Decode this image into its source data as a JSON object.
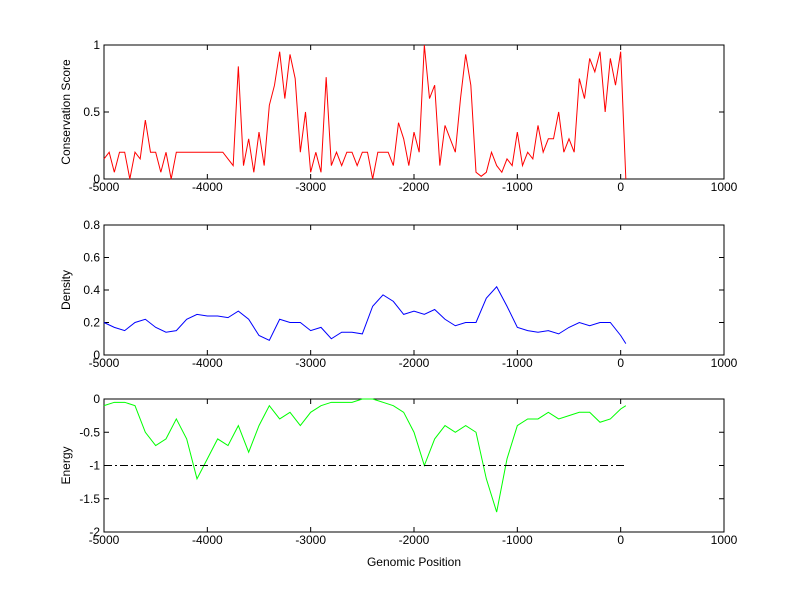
{
  "chart_data": [
    {
      "type": "line",
      "ylabel": "Conservation Score",
      "xlim": [
        -5000,
        1000
      ],
      "xticks": [
        -5000,
        -4000,
        -3000,
        -2000,
        -1000,
        0,
        1000
      ],
      "ylim": [
        0,
        1
      ],
      "yticks": [
        0,
        0.5,
        1
      ],
      "series": [
        {
          "color": "#ff0000",
          "x": [
            -5000,
            -4950,
            -4900,
            -4850,
            -4800,
            -4750,
            -4700,
            -4650,
            -4600,
            -4550,
            -4500,
            -4450,
            -4400,
            -4350,
            -4300,
            -4250,
            -4200,
            -4150,
            -4100,
            -4050,
            -4000,
            -3950,
            -3900,
            -3850,
            -3800,
            -3750,
            -3700,
            -3650,
            -3600,
            -3550,
            -3500,
            -3450,
            -3400,
            -3350,
            -3300,
            -3250,
            -3200,
            -3150,
            -3100,
            -3050,
            -3000,
            -2950,
            -2900,
            -2850,
            -2800,
            -2750,
            -2700,
            -2650,
            -2600,
            -2550,
            -2500,
            -2450,
            -2400,
            -2350,
            -2300,
            -2250,
            -2200,
            -2150,
            -2100,
            -2050,
            -2000,
            -1950,
            -1900,
            -1850,
            -1800,
            -1750,
            -1700,
            -1650,
            -1600,
            -1550,
            -1500,
            -1450,
            -1400,
            -1350,
            -1300,
            -1250,
            -1200,
            -1150,
            -1100,
            -1050,
            -1000,
            -950,
            -900,
            -850,
            -800,
            -750,
            -700,
            -650,
            -600,
            -550,
            -500,
            -450,
            -400,
            -350,
            -300,
            -250,
            -200,
            -150,
            -100,
            -50,
            0,
            50
          ],
          "values": [
            0.15,
            0.2,
            0.05,
            0.2,
            0.2,
            0,
            0.2,
            0.15,
            0.44,
            0.2,
            0.2,
            0.05,
            0.2,
            0,
            0.2,
            0.2,
            0.2,
            0.2,
            0.2,
            0.2,
            0.2,
            0.2,
            0.2,
            0.2,
            0.15,
            0.1,
            0.84,
            0.1,
            0.3,
            0.05,
            0.35,
            0.1,
            0.55,
            0.7,
            0.95,
            0.6,
            0.93,
            0.75,
            0.2,
            0.5,
            0.05,
            0.2,
            0.05,
            0.76,
            0.1,
            0.2,
            0.1,
            0.2,
            0.2,
            0.1,
            0.2,
            0.2,
            0,
            0.2,
            0.2,
            0.2,
            0.1,
            0.42,
            0.3,
            0.1,
            0.35,
            0.2,
            1,
            0.6,
            0.7,
            0.1,
            0.4,
            0.3,
            0.2,
            0.6,
            0.93,
            0.7,
            0.05,
            0.02,
            0.05,
            0.2,
            0.1,
            0.05,
            0.15,
            0.1,
            0.35,
            0.1,
            0.2,
            0.15,
            0.4,
            0.2,
            0.3,
            0.3,
            0.5,
            0.2,
            0.3,
            0.2,
            0.75,
            0.6,
            0.9,
            0.8,
            0.95,
            0.5,
            0.9,
            0.7,
            0.95,
            0
          ]
        }
      ]
    },
    {
      "type": "line",
      "ylabel": "Density",
      "xlim": [
        -5000,
        1000
      ],
      "xticks": [
        -5000,
        -4000,
        -3000,
        -2000,
        -1000,
        0,
        1000
      ],
      "ylim": [
        0,
        0.8
      ],
      "yticks": [
        0,
        0.2,
        0.4,
        0.6,
        0.8
      ],
      "series": [
        {
          "color": "#0000ff",
          "x": [
            -5000,
            -4900,
            -4800,
            -4700,
            -4600,
            -4500,
            -4400,
            -4300,
            -4200,
            -4100,
            -4000,
            -3900,
            -3800,
            -3700,
            -3600,
            -3500,
            -3400,
            -3300,
            -3200,
            -3100,
            -3000,
            -2900,
            -2800,
            -2700,
            -2600,
            -2500,
            -2400,
            -2300,
            -2200,
            -2100,
            -2000,
            -1900,
            -1800,
            -1700,
            -1600,
            -1500,
            -1400,
            -1300,
            -1200,
            -1100,
            -1000,
            -900,
            -800,
            -700,
            -600,
            -500,
            -400,
            -300,
            -200,
            -100,
            0,
            50
          ],
          "values": [
            0.2,
            0.17,
            0.15,
            0.2,
            0.22,
            0.17,
            0.14,
            0.15,
            0.22,
            0.25,
            0.24,
            0.24,
            0.23,
            0.27,
            0.22,
            0.12,
            0.09,
            0.22,
            0.2,
            0.2,
            0.15,
            0.17,
            0.1,
            0.14,
            0.14,
            0.13,
            0.3,
            0.37,
            0.33,
            0.25,
            0.27,
            0.25,
            0.28,
            0.22,
            0.18,
            0.2,
            0.2,
            0.35,
            0.42,
            0.3,
            0.17,
            0.15,
            0.14,
            0.15,
            0.13,
            0.17,
            0.2,
            0.18,
            0.2,
            0.2,
            0.12,
            0.07
          ]
        }
      ]
    },
    {
      "type": "line",
      "ylabel": "Energy",
      "xlabel": "Genomic Position",
      "xlim": [
        -5000,
        1000
      ],
      "xticks": [
        -5000,
        -4000,
        -3000,
        -2000,
        -1000,
        0,
        1000
      ],
      "ylim": [
        -2,
        0
      ],
      "yticks": [
        -2,
        -1.5,
        -1,
        -0.5,
        0
      ],
      "series": [
        {
          "color": "#00ff00",
          "x": [
            -5000,
            -4900,
            -4800,
            -4700,
            -4600,
            -4500,
            -4400,
            -4300,
            -4200,
            -4100,
            -4000,
            -3900,
            -3800,
            -3700,
            -3600,
            -3500,
            -3400,
            -3300,
            -3200,
            -3100,
            -3000,
            -2900,
            -2800,
            -2700,
            -2600,
            -2500,
            -2400,
            -2300,
            -2200,
            -2100,
            -2000,
            -1900,
            -1800,
            -1700,
            -1600,
            -1500,
            -1400,
            -1300,
            -1200,
            -1100,
            -1000,
            -900,
            -800,
            -700,
            -600,
            -500,
            -400,
            -300,
            -200,
            -100,
            0,
            50
          ],
          "values": [
            -0.1,
            -0.05,
            -0.05,
            -0.1,
            -0.5,
            -0.7,
            -0.6,
            -0.3,
            -0.6,
            -1.2,
            -0.9,
            -0.6,
            -0.7,
            -0.4,
            -0.8,
            -0.4,
            -0.1,
            -0.3,
            -0.2,
            -0.4,
            -0.2,
            -0.1,
            -0.05,
            -0.05,
            -0.05,
            0,
            0,
            -0.05,
            -0.1,
            -0.2,
            -0.5,
            -1,
            -0.6,
            -0.4,
            -0.5,
            -0.4,
            -0.5,
            -1.2,
            -1.7,
            -0.9,
            -0.4,
            -0.3,
            -0.3,
            -0.2,
            -0.3,
            -0.25,
            -0.2,
            -0.2,
            -0.35,
            -0.3,
            -0.15,
            -0.1
          ]
        },
        {
          "color": "#000000",
          "linestyle": "dashdot",
          "x": [
            -5000,
            50
          ],
          "values": [
            -1,
            -1
          ]
        }
      ]
    }
  ]
}
